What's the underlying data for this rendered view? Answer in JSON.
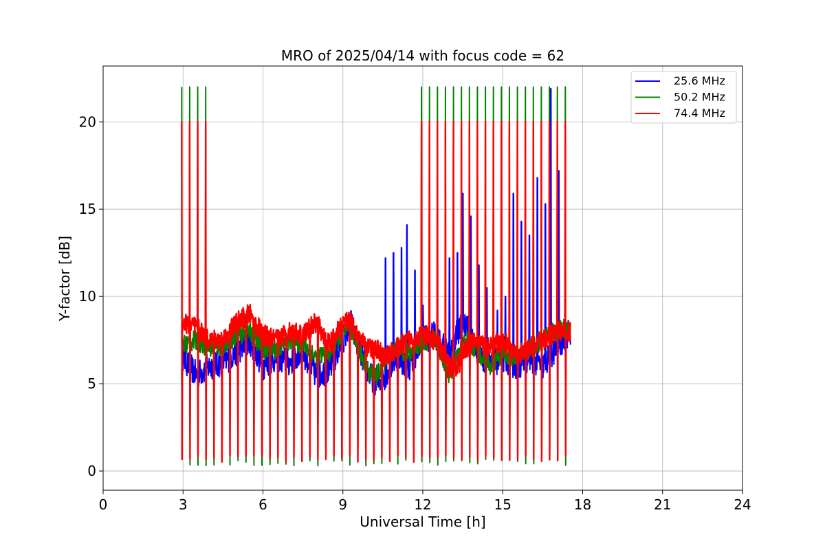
{
  "chart_data": {
    "type": "line",
    "title": "MRO of 2025/04/14 with focus code = 62",
    "xlabel": "Universal Time [h]",
    "ylabel": "Y-factor [dB]",
    "xlim": [
      0,
      24
    ],
    "ylim": [
      -1.1,
      23.2
    ],
    "xticks": [
      0,
      3,
      6,
      9,
      12,
      15,
      18,
      21,
      24
    ],
    "xtick_labels": [
      "0",
      "3",
      "6",
      "9",
      "12",
      "15",
      "18",
      "21",
      "24"
    ],
    "yticks": [
      0,
      5,
      10,
      15,
      20
    ],
    "ytick_labels": [
      "0",
      "5",
      "10",
      "15",
      "20"
    ],
    "grid": true,
    "legend_position": "top-right",
    "sweep_start_h": 2.95,
    "sweep_end_h": 17.55,
    "sweep_period_h": 0.3,
    "series": [
      {
        "name": "25.6 MHz",
        "color": "#0000ff",
        "x": [
          3.0,
          3.5,
          4.0,
          4.5,
          5.0,
          5.5,
          6.0,
          6.5,
          7.0,
          7.5,
          8.0,
          8.5,
          9.0,
          9.3,
          9.6,
          10.0,
          10.3,
          10.6,
          11.0,
          11.5,
          12.0,
          12.5,
          13.0,
          13.3,
          13.6,
          14.0,
          14.5,
          15.0,
          15.5,
          16.0,
          16.5,
          17.0,
          17.5,
          17.7
        ],
        "y": [
          6.5,
          5.5,
          6.0,
          6.2,
          6.8,
          7.5,
          6.0,
          6.5,
          6.2,
          6.8,
          5.5,
          5.8,
          7.5,
          8.5,
          7.0,
          5.5,
          5.0,
          5.5,
          6.5,
          6.0,
          7.5,
          7.8,
          6.5,
          8.0,
          8.5,
          7.0,
          6.0,
          6.5,
          6.0,
          6.5,
          6.0,
          7.0,
          8.0,
          7.8
        ],
        "spikes": [
          {
            "x": 10.6,
            "y": 12.2
          },
          {
            "x": 10.9,
            "y": 12.5
          },
          {
            "x": 11.2,
            "y": 12.8
          },
          {
            "x": 11.4,
            "y": 14.1
          },
          {
            "x": 11.7,
            "y": 11.5
          },
          {
            "x": 12.0,
            "y": 9.5
          },
          {
            "x": 13.0,
            "y": 12.2
          },
          {
            "x": 13.3,
            "y": 12.5
          },
          {
            "x": 13.5,
            "y": 15.9
          },
          {
            "x": 13.8,
            "y": 14.6
          },
          {
            "x": 14.1,
            "y": 11.8
          },
          {
            "x": 14.4,
            "y": 10.5
          },
          {
            "x": 14.8,
            "y": 9.2
          },
          {
            "x": 15.1,
            "y": 10.0
          },
          {
            "x": 15.4,
            "y": 15.9
          },
          {
            "x": 15.7,
            "y": 14.3
          },
          {
            "x": 16.0,
            "y": 13.5
          },
          {
            "x": 16.3,
            "y": 16.8
          },
          {
            "x": 16.6,
            "y": 15.3
          },
          {
            "x": 16.8,
            "y": 21.9
          },
          {
            "x": 17.1,
            "y": 17.2
          }
        ]
      },
      {
        "name": "50.2 MHz",
        "color": "#008000",
        "x": [
          3.0,
          3.5,
          4.0,
          4.5,
          5.0,
          5.5,
          6.0,
          6.5,
          7.0,
          7.5,
          8.0,
          8.5,
          9.0,
          9.3,
          9.6,
          10.0,
          10.3,
          10.6,
          11.0,
          11.5,
          12.0,
          12.5,
          13.0,
          13.3,
          13.6,
          14.0,
          14.5,
          15.0,
          15.5,
          16.0,
          16.5,
          17.0,
          17.5,
          17.7
        ],
        "y": [
          7.2,
          7.5,
          7.0,
          7.2,
          7.8,
          8.0,
          7.0,
          7.0,
          7.5,
          7.3,
          6.5,
          6.8,
          8.0,
          8.2,
          7.0,
          5.5,
          5.5,
          6.5,
          7.0,
          6.8,
          7.5,
          7.5,
          5.5,
          6.5,
          7.5,
          7.0,
          6.0,
          6.8,
          6.5,
          7.0,
          7.5,
          8.0,
          8.2,
          8.0
        ],
        "peak_high": 22.0,
        "peak_low": 0.3
      },
      {
        "name": "74.4 MHz",
        "color": "#ff0000",
        "x": [
          3.0,
          3.5,
          4.0,
          4.5,
          5.0,
          5.5,
          6.0,
          6.5,
          7.0,
          7.5,
          8.0,
          8.5,
          9.0,
          9.3,
          9.6,
          10.0,
          10.3,
          10.6,
          11.0,
          11.5,
          12.0,
          12.5,
          13.0,
          13.3,
          13.6,
          14.0,
          14.5,
          15.0,
          15.5,
          16.0,
          16.5,
          17.0,
          17.5,
          17.7
        ],
        "y": [
          8.5,
          8.2,
          7.5,
          7.5,
          8.5,
          9.0,
          7.8,
          7.5,
          8.0,
          7.8,
          8.5,
          7.2,
          8.5,
          8.5,
          7.5,
          7.0,
          7.0,
          6.5,
          7.0,
          7.5,
          7.8,
          7.5,
          6.0,
          6.0,
          7.0,
          7.5,
          7.0,
          7.5,
          6.5,
          7.0,
          7.5,
          8.0,
          8.0,
          8.0
        ],
        "peak_high": 20.0,
        "peak_low": 0.5
      }
    ]
  }
}
